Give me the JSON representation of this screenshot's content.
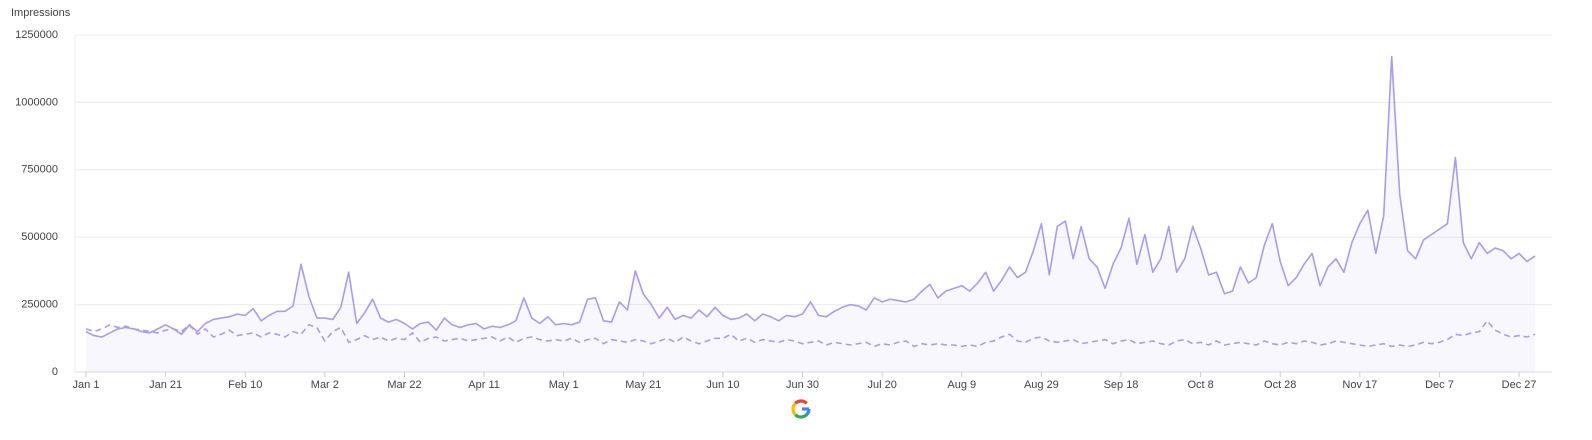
{
  "chart_data": {
    "type": "line",
    "y_axis_label": "Impressions",
    "categories": [
      "Jan 1",
      null,
      null,
      null,
      null,
      null,
      null,
      null,
      null,
      null,
      "Jan 21",
      null,
      null,
      null,
      null,
      null,
      null,
      null,
      null,
      null,
      "Feb 10",
      null,
      null,
      null,
      null,
      null,
      null,
      null,
      null,
      null,
      "Mar 2",
      null,
      null,
      null,
      null,
      null,
      null,
      null,
      null,
      null,
      "Mar 22",
      null,
      null,
      null,
      null,
      null,
      null,
      null,
      null,
      null,
      "Apr 11",
      null,
      null,
      null,
      null,
      null,
      null,
      null,
      null,
      null,
      "May 1",
      null,
      null,
      null,
      null,
      null,
      null,
      null,
      null,
      null,
      "May 21",
      null,
      null,
      null,
      null,
      null,
      null,
      null,
      null,
      null,
      "Jun 10",
      null,
      null,
      null,
      null,
      null,
      null,
      null,
      null,
      null,
      "Jun 30",
      null,
      null,
      null,
      null,
      null,
      null,
      null,
      null,
      null,
      "Jul 20",
      null,
      null,
      null,
      null,
      null,
      null,
      null,
      null,
      null,
      "Aug 9",
      null,
      null,
      null,
      null,
      null,
      null,
      null,
      null,
      null,
      "Aug 29",
      null,
      null,
      null,
      null,
      null,
      null,
      null,
      null,
      null,
      "Sep 18",
      null,
      null,
      null,
      null,
      null,
      null,
      null,
      null,
      null,
      "Oct 8",
      null,
      null,
      null,
      null,
      null,
      null,
      null,
      null,
      null,
      "Oct 28",
      null,
      null,
      null,
      null,
      null,
      null,
      null,
      null,
      null,
      "Nov 17",
      null,
      null,
      null,
      null,
      null,
      null,
      null,
      null,
      null,
      "Dec 7",
      null,
      null,
      null,
      null,
      null,
      null,
      null,
      null,
      null,
      "Dec 27",
      null,
      null
    ],
    "series": [
      {
        "color": "#a99cf0",
        "line_style": "solid",
        "area": true,
        "values": [
          150000,
          135000,
          130000,
          145000,
          160000,
          165000,
          160000,
          150000,
          145000,
          160000,
          175000,
          160000,
          140000,
          175000,
          150000,
          180000,
          195000,
          200000,
          205000,
          215000,
          210000,
          235000,
          190000,
          210000,
          225000,
          225000,
          245000,
          400000,
          280000,
          200000,
          200000,
          195000,
          240000,
          370000,
          180000,
          220000,
          270000,
          200000,
          185000,
          195000,
          180000,
          160000,
          180000,
          185000,
          155000,
          200000,
          175000,
          165000,
          175000,
          180000,
          160000,
          170000,
          165000,
          175000,
          190000,
          275000,
          200000,
          180000,
          205000,
          175000,
          180000,
          175000,
          185000,
          270000,
          275000,
          190000,
          185000,
          260000,
          230000,
          375000,
          290000,
          250000,
          200000,
          240000,
          195000,
          210000,
          200000,
          230000,
          205000,
          240000,
          210000,
          195000,
          200000,
          215000,
          190000,
          215000,
          205000,
          190000,
          210000,
          205000,
          215000,
          260000,
          210000,
          205000,
          225000,
          240000,
          250000,
          245000,
          230000,
          275000,
          260000,
          270000,
          265000,
          260000,
          270000,
          300000,
          325000,
          275000,
          300000,
          310000,
          320000,
          300000,
          330000,
          370000,
          300000,
          340000,
          390000,
          350000,
          370000,
          450000,
          550000,
          360000,
          540000,
          560000,
          420000,
          540000,
          420000,
          390000,
          310000,
          400000,
          460000,
          570000,
          400000,
          510000,
          370000,
          420000,
          540000,
          370000,
          420000,
          540000,
          460000,
          360000,
          370000,
          290000,
          300000,
          390000,
          330000,
          350000,
          470000,
          550000,
          410000,
          320000,
          350000,
          400000,
          440000,
          320000,
          390000,
          420000,
          370000,
          480000,
          550000,
          600000,
          440000,
          580000,
          1170000,
          660000,
          450000,
          420000,
          490000,
          510000,
          530000,
          550000,
          795000,
          480000,
          420000,
          480000,
          440000,
          460000,
          450000,
          420000,
          440000,
          410000,
          430000
        ]
      },
      {
        "color": "#a99cf0",
        "line_style": "dashed",
        "area": false,
        "values": [
          160000,
          150000,
          160000,
          175000,
          165000,
          170000,
          160000,
          155000,
          150000,
          145000,
          155000,
          160000,
          150000,
          175000,
          140000,
          160000,
          130000,
          140000,
          155000,
          135000,
          140000,
          145000,
          130000,
          145000,
          140000,
          130000,
          150000,
          140000,
          175000,
          165000,
          115000,
          150000,
          165000,
          110000,
          120000,
          135000,
          120000,
          130000,
          115000,
          125000,
          120000,
          145000,
          110000,
          125000,
          130000,
          115000,
          120000,
          125000,
          115000,
          120000,
          125000,
          130000,
          115000,
          130000,
          110000,
          125000,
          130000,
          120000,
          115000,
          120000,
          115000,
          125000,
          110000,
          120000,
          125000,
          105000,
          120000,
          115000,
          110000,
          120000,
          115000,
          105000,
          115000,
          125000,
          110000,
          130000,
          115000,
          105000,
          115000,
          125000,
          125000,
          140000,
          115000,
          125000,
          110000,
          120000,
          115000,
          110000,
          120000,
          115000,
          105000,
          110000,
          115000,
          100000,
          110000,
          105000,
          100000,
          105000,
          110000,
          95000,
          105000,
          100000,
          110000,
          115000,
          95000,
          105000,
          100000,
          105000,
          100000,
          100000,
          95000,
          100000,
          95000,
          110000,
          115000,
          130000,
          140000,
          115000,
          110000,
          125000,
          130000,
          115000,
          110000,
          115000,
          120000,
          105000,
          110000,
          115000,
          120000,
          105000,
          115000,
          120000,
          105000,
          110000,
          115000,
          105000,
          100000,
          115000,
          120000,
          105000,
          110000,
          100000,
          115000,
          100000,
          105000,
          110000,
          105000,
          100000,
          115000,
          105000,
          100000,
          110000,
          105000,
          115000,
          110000,
          100000,
          105000,
          115000,
          110000,
          105000,
          100000,
          95000,
          100000,
          105000,
          95000,
          100000,
          95000,
          100000,
          110000,
          105000,
          110000,
          120000,
          140000,
          135000,
          145000,
          150000,
          190000,
          155000,
          140000,
          130000,
          135000,
          130000,
          140000
        ]
      }
    ],
    "ylim": [
      0,
      1250000
    ],
    "yticks": [
      0,
      250000,
      500000,
      750000,
      1000000,
      1250000
    ],
    "grid": true
  }
}
